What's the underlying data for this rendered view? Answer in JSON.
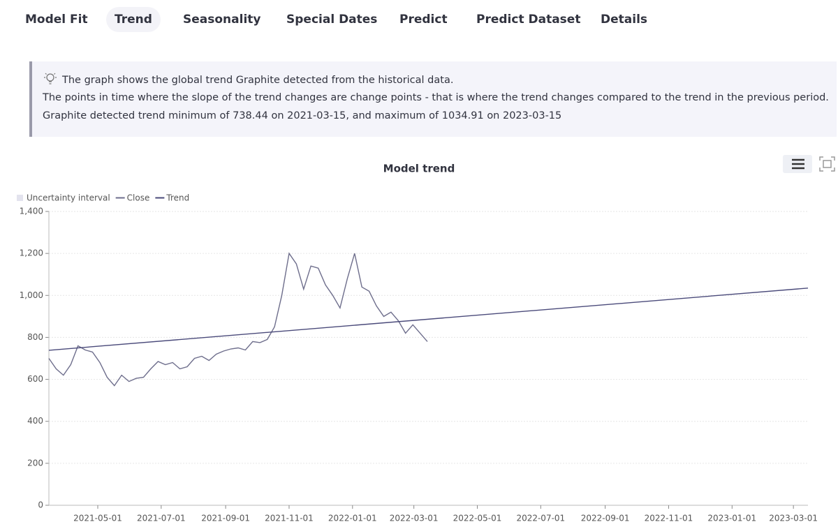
{
  "tabs": [
    "Model Fit",
    "Trend",
    "Seasonality",
    "Special Dates",
    "Predict",
    "Predict Dataset",
    "Details"
  ],
  "active_tab": 1,
  "info": {
    "line1": "The graph shows the global trend Graphite detected from the historical data.",
    "line2": "The points in time where the slope of the trend changes are change points - that is where the trend changes compared to the trend in the previous period.",
    "line3": "Graphite detected trend minimum of 738.44 on 2021-03-15, and maximum of 1034.91 on 2023-03-15"
  },
  "chart_data": {
    "type": "line",
    "title": "Model trend",
    "xlim": [
      "2021-03-15",
      "2023-03-15"
    ],
    "xticks": [
      "2021-05-01",
      "2021-07-01",
      "2021-09-01",
      "2021-11-01",
      "2022-01-01",
      "2022-03-01",
      "2022-05-01",
      "2022-07-01",
      "2022-09-01",
      "2022-11-01",
      "2023-01-01",
      "2023-03-01"
    ],
    "ylim": [
      0,
      1400
    ],
    "yticks": [
      0,
      200,
      400,
      600,
      800,
      {
        "value": 1000,
        "label": "1,000"
      },
      {
        "value": 1200,
        "label": "1,200"
      },
      {
        "value": 1400,
        "label": "1,400"
      }
    ],
    "grid": true,
    "series": [
      {
        "name": "Uncertainty interval",
        "color": "#e3e3ee"
      },
      {
        "name": "Close",
        "color": "#6e6e8c",
        "x": [
          "2021-03-15",
          "2021-03-22",
          "2021-03-29",
          "2021-04-05",
          "2021-04-12",
          "2021-04-19",
          "2021-04-26",
          "2021-05-03",
          "2021-05-10",
          "2021-05-17",
          "2021-05-24",
          "2021-05-31",
          "2021-06-07",
          "2021-06-14",
          "2021-06-21",
          "2021-06-28",
          "2021-07-05",
          "2021-07-12",
          "2021-07-19",
          "2021-07-26",
          "2021-08-02",
          "2021-08-09",
          "2021-08-16",
          "2021-08-23",
          "2021-08-30",
          "2021-09-06",
          "2021-09-13",
          "2021-09-20",
          "2021-09-27",
          "2021-10-04",
          "2021-10-11",
          "2021-10-18",
          "2021-10-25",
          "2021-11-01",
          "2021-11-08",
          "2021-11-15",
          "2021-11-22",
          "2021-11-29",
          "2021-12-06",
          "2021-12-13",
          "2021-12-20",
          "2021-12-27",
          "2022-01-03",
          "2022-01-10",
          "2022-01-17",
          "2022-01-24",
          "2022-01-31",
          "2022-02-07",
          "2022-02-14",
          "2022-02-21",
          "2022-02-28",
          "2022-03-07",
          "2022-03-14"
        ],
        "values": [
          700,
          650,
          620,
          670,
          760,
          740,
          730,
          680,
          610,
          570,
          620,
          590,
          605,
          610,
          650,
          685,
          670,
          680,
          650,
          660,
          700,
          710,
          690,
          720,
          735,
          745,
          750,
          740,
          780,
          775,
          790,
          850,
          1000,
          1200,
          1150,
          1030,
          1140,
          1130,
          1050,
          1000,
          940,
          1080,
          1200,
          1040,
          1020,
          950,
          900,
          920,
          880,
          820,
          860,
          820,
          780
        ]
      },
      {
        "name": "Trend",
        "color": "#4a4a7a",
        "x": [
          "2021-03-15",
          "2023-03-15"
        ],
        "values": [
          738.44,
          1034.91
        ]
      }
    ]
  }
}
